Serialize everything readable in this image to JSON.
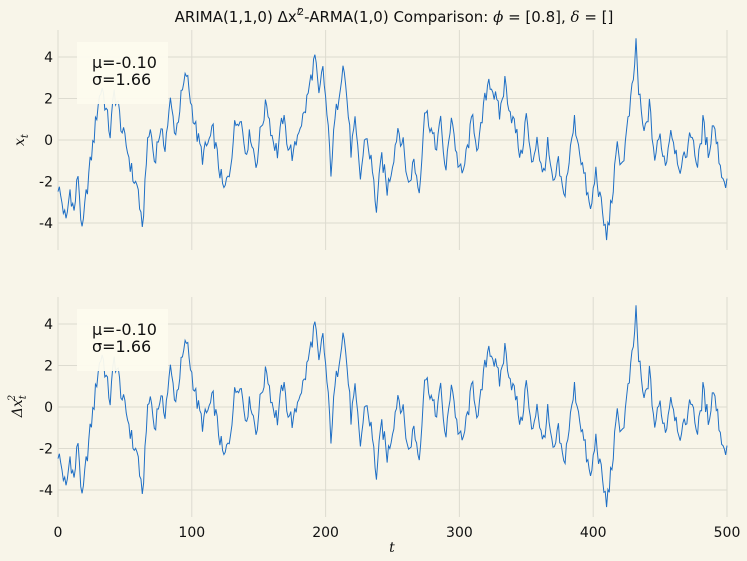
{
  "figure": {
    "title_parts": [
      "ARIMA(1,1,0) Δx",
      "t",
      "2",
      "-ARMA(1,0) Comparison: ",
      "ϕ",
      " = [0.8], ",
      "δ",
      " = []"
    ],
    "background": "#f8f5e9",
    "line_color": "#1f6fc5"
  },
  "chart_data": [
    {
      "type": "line",
      "panel": "top",
      "ylabel_parts": [
        "x",
        "t"
      ],
      "xlim": [
        0,
        500
      ],
      "ylim": [
        -5.3,
        5.3
      ],
      "xticks": [
        0,
        100,
        200,
        300,
        400,
        500
      ],
      "yticks": [
        -4,
        -2,
        0,
        2,
        4
      ],
      "grid": true,
      "stats_box": {
        "position": "top-left",
        "mean_label": "μ=-0.10",
        "std_label": "σ=1.66"
      },
      "series": [
        {
          "x_start": 0,
          "x_step": 1,
          "y": []
        }
      ]
    },
    {
      "type": "line",
      "panel": "bottom",
      "ylabel_parts": [
        "Δx",
        "t",
        "2"
      ],
      "xlabel": "t",
      "xlim": [
        0,
        500
      ],
      "ylim": [
        -5.3,
        5.3
      ],
      "xticks": [
        0,
        100,
        200,
        300,
        400,
        500
      ],
      "yticks": [
        -4,
        -2,
        0,
        2,
        4
      ],
      "grid": true,
      "stats_box": {
        "position": "top-left",
        "mean_label": "μ=-0.10",
        "std_label": "σ=1.66"
      },
      "series": [
        {
          "x_start": 0,
          "x_step": 1,
          "y": []
        }
      ]
    }
  ],
  "anchor_points": [
    [
      0,
      -2.2
    ],
    [
      3,
      -3.0
    ],
    [
      6,
      -4.0
    ],
    [
      9,
      -2.4
    ],
    [
      12,
      -3.5
    ],
    [
      15,
      -1.6
    ],
    [
      18,
      -4.6
    ],
    [
      21,
      -2.7
    ],
    [
      24,
      -1.2
    ],
    [
      27,
      0.2
    ],
    [
      30,
      1.8
    ],
    [
      33,
      2.6
    ],
    [
      36,
      1.4
    ],
    [
      39,
      0.3
    ],
    [
      42,
      2.3
    ],
    [
      45,
      1.6
    ],
    [
      48,
      0.4
    ],
    [
      52,
      -0.5
    ],
    [
      56,
      -1.8
    ],
    [
      60,
      -2.4
    ],
    [
      63,
      -4.6
    ],
    [
      66,
      -0.8
    ],
    [
      69,
      0.6
    ],
    [
      72,
      -1.0
    ],
    [
      76,
      0.4
    ],
    [
      80,
      -0.2
    ],
    [
      84,
      1.8
    ],
    [
      88,
      0.3
    ],
    [
      92,
      2.0
    ],
    [
      96,
      3.2
    ],
    [
      100,
      1.6
    ],
    [
      104,
      0.2
    ],
    [
      108,
      -0.8
    ],
    [
      112,
      -0.2
    ],
    [
      116,
      0.4
    ],
    [
      120,
      -1.2
    ],
    [
      124,
      -2.5
    ],
    [
      128,
      -1.6
    ],
    [
      132,
      0.6
    ],
    [
      136,
      1.3
    ],
    [
      140,
      -0.5
    ],
    [
      144,
      0.3
    ],
    [
      148,
      -1.2
    ],
    [
      152,
      0.7
    ],
    [
      156,
      1.8
    ],
    [
      160,
      0.2
    ],
    [
      164,
      -0.6
    ],
    [
      168,
      1.1
    ],
    [
      172,
      -0.2
    ],
    [
      176,
      -0.8
    ],
    [
      180,
      0.6
    ],
    [
      184,
      1.2
    ],
    [
      188,
      2.6
    ],
    [
      192,
      4.0
    ],
    [
      195,
      2.0
    ],
    [
      198,
      3.5
    ],
    [
      201,
      1.2
    ],
    [
      204,
      -1.4
    ],
    [
      207,
      0.9
    ],
    [
      210,
      2.3
    ],
    [
      213,
      3.8
    ],
    [
      216,
      2.0
    ],
    [
      219,
      -0.5
    ],
    [
      222,
      0.7
    ],
    [
      226,
      -1.8
    ],
    [
      230,
      0.3
    ],
    [
      234,
      -1.0
    ],
    [
      238,
      -3.3
    ],
    [
      242,
      -0.8
    ],
    [
      246,
      -2.4
    ],
    [
      250,
      -1.1
    ],
    [
      254,
      0.6
    ],
    [
      258,
      -0.3
    ],
    [
      262,
      -2.2
    ],
    [
      266,
      -1.0
    ],
    [
      270,
      -2.5
    ],
    [
      274,
      1.5
    ],
    [
      278,
      0.8
    ],
    [
      282,
      -0.4
    ],
    [
      286,
      0.8
    ],
    [
      290,
      -1.6
    ],
    [
      294,
      1.3
    ],
    [
      298,
      -0.8
    ],
    [
      302,
      -1.8
    ],
    [
      306,
      -0.4
    ],
    [
      310,
      1.1
    ],
    [
      314,
      -0.6
    ],
    [
      318,
      1.5
    ],
    [
      322,
      3.0
    ],
    [
      326,
      2.2
    ],
    [
      330,
      1.2
    ],
    [
      334,
      2.8
    ],
    [
      338,
      1.4
    ],
    [
      342,
      0.5
    ],
    [
      346,
      -0.9
    ],
    [
      350,
      1.2
    ],
    [
      354,
      -1.3
    ],
    [
      358,
      0.2
    ],
    [
      362,
      -1.8
    ],
    [
      366,
      -0.3
    ],
    [
      370,
      -2.3
    ],
    [
      374,
      -1.2
    ],
    [
      378,
      -2.8
    ],
    [
      382,
      -1.0
    ],
    [
      386,
      0.9
    ],
    [
      390,
      -0.5
    ],
    [
      394,
      -2.0
    ],
    [
      398,
      -3.5
    ],
    [
      402,
      -1.5
    ],
    [
      406,
      -3.2
    ],
    [
      410,
      -4.7
    ],
    [
      414,
      -2.8
    ],
    [
      418,
      -0.4
    ],
    [
      422,
      -1.2
    ],
    [
      426,
      0.8
    ],
    [
      430,
      2.8
    ],
    [
      432,
      4.8
    ],
    [
      434,
      2.3
    ],
    [
      438,
      0.2
    ],
    [
      442,
      1.6
    ],
    [
      446,
      -0.9
    ],
    [
      450,
      0.2
    ],
    [
      454,
      -1.2
    ],
    [
      458,
      0.6
    ],
    [
      462,
      -0.6
    ],
    [
      466,
      -1.5
    ],
    [
      470,
      -0.4
    ],
    [
      474,
      0.4
    ],
    [
      478,
      -1.4
    ],
    [
      482,
      0.8
    ],
    [
      486,
      -0.6
    ],
    [
      490,
      0.9
    ],
    [
      494,
      -0.8
    ],
    [
      498,
      -2.2
    ],
    [
      500,
      -1.7
    ]
  ]
}
